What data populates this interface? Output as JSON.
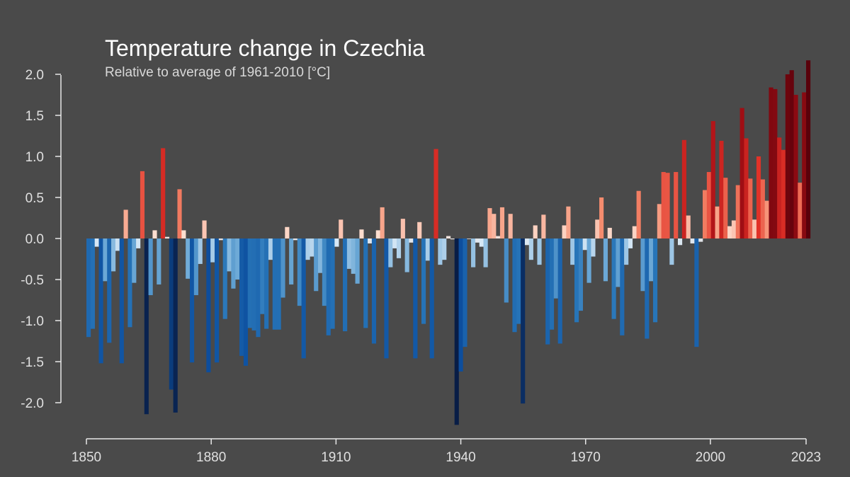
{
  "chart_data": {
    "type": "bar",
    "title": "Temperature change in Czechia",
    "subtitle": "Relative to average of 1961-2010  [°C]",
    "xlabel": "",
    "ylabel": "",
    "xlim": [
      1850,
      2023
    ],
    "ylim": [
      -2.2,
      2.2
    ],
    "x_ticks": [
      "1850",
      "1880",
      "1910",
      "1940",
      "1970",
      "2000",
      "2023"
    ],
    "y_ticks": [
      "2.0",
      "1.5",
      "1.0",
      "0.5",
      "0.0",
      "-0.5",
      "-1.0",
      "-1.5",
      "-2.0"
    ],
    "grid": false,
    "legend": "none",
    "start_year": 1850,
    "values": [
      -1.2,
      -1.1,
      -0.1,
      -1.52,
      -0.52,
      -1.27,
      -0.4,
      -0.15,
      -1.52,
      0.35,
      -1.08,
      -0.54,
      -0.12,
      0.82,
      -2.14,
      -0.69,
      0.1,
      -0.56,
      1.1,
      0.02,
      -1.84,
      -2.12,
      0.6,
      0.1,
      -0.49,
      -1.51,
      -0.69,
      -0.31,
      0.22,
      -1.63,
      -0.29,
      -1.51,
      -0.02,
      -0.98,
      -0.4,
      -0.61,
      -0.5,
      -1.43,
      -1.55,
      -1.09,
      -1.12,
      -1.2,
      -0.92,
      -1.1,
      -0.26,
      -1.11,
      -1.11,
      -0.72,
      0.14,
      -0.56,
      -0.02,
      -0.82,
      -1.46,
      -0.26,
      -0.22,
      -0.64,
      -0.42,
      -0.82,
      -1.18,
      -1.1,
      -0.1,
      0.23,
      -1.13,
      -0.37,
      -0.43,
      -0.55,
      0.11,
      -1.09,
      -0.06,
      -1.28,
      0.1,
      0.38,
      -1.46,
      -0.35,
      -0.12,
      -0.24,
      0.24,
      -0.41,
      -0.05,
      -1.46,
      0.2,
      -1.04,
      -0.27,
      -1.46,
      1.09,
      -0.32,
      -0.26,
      0.03,
      -0.01,
      -2.27,
      -1.62,
      -1.32,
      0.0,
      -0.35,
      -0.05,
      -0.1,
      -0.35,
      0.37,
      0.3,
      0.03,
      0.38,
      -0.78,
      0.3,
      -1.14,
      -1.04,
      -2.01,
      -0.08,
      -0.26,
      0.16,
      -0.32,
      0.29,
      -1.29,
      -1.11,
      -0.73,
      -1.28,
      0.16,
      0.39,
      -0.32,
      -1.02,
      -0.88,
      -0.14,
      -0.54,
      -0.22,
      0.23,
      0.5,
      -0.52,
      0.13,
      -0.98,
      -0.59,
      -1.18,
      -0.32,
      -0.12,
      0.15,
      0.58,
      -0.64,
      -1.22,
      -0.52,
      -1.02,
      0.42,
      0.81,
      0.8,
      -0.32,
      0.81,
      -0.08,
      1.2,
      0.28,
      -0.06,
      -1.32,
      -0.04,
      0.59,
      0.81,
      1.43,
      0.39,
      1.19,
      0.74,
      0.15,
      0.22,
      0.65,
      1.59,
      1.22,
      0.73,
      0.23,
      1.0,
      0.72,
      0.46,
      1.84,
      1.82,
      1.23,
      1.08,
      2.0,
      2.05,
      1.75,
      0.68,
      1.78,
      2.17
    ]
  }
}
